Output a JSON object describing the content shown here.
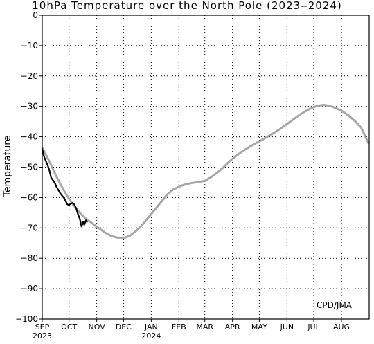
{
  "chart_data": {
    "type": "line",
    "title": "10hPa Temperature over the North Pole (2023‒2024)",
    "ylabel": "Temperature",
    "xlabel": "",
    "ylim": [
      -100,
      0
    ],
    "yticks": [
      0,
      -10,
      -20,
      -30,
      -40,
      -50,
      -60,
      -70,
      -80,
      -90,
      -100
    ],
    "ytick_labels": [
      "0",
      "−10",
      "−20",
      "−30",
      "−40",
      "−50",
      "−60",
      "−70",
      "−80",
      "−90",
      "−100"
    ],
    "x_months": [
      {
        "label": "SEP",
        "year": "2023"
      },
      {
        "label": "OCT",
        "year": ""
      },
      {
        "label": "NOV",
        "year": ""
      },
      {
        "label": "DEC",
        "year": ""
      },
      {
        "label": "JAN",
        "year": "2024"
      },
      {
        "label": "FEB",
        "year": ""
      },
      {
        "label": "MAR",
        "year": ""
      },
      {
        "label": "APR",
        "year": ""
      },
      {
        "label": "MAY",
        "year": ""
      },
      {
        "label": "JUN",
        "year": ""
      },
      {
        "label": "JUL",
        "year": ""
      },
      {
        "label": "AUG",
        "year": ""
      }
    ],
    "grid": true,
    "annotation": "CPD/JMA",
    "series": [
      {
        "color": "#a6a6a6",
        "points": [
          [
            "2023-09-01",
            -43.5
          ],
          [
            "2023-09-08",
            -47.5
          ],
          [
            "2023-09-15",
            -52.0
          ],
          [
            "2023-09-22",
            -56.0
          ],
          [
            "2023-09-29",
            -59.5
          ],
          [
            "2023-10-06",
            -62.5
          ],
          [
            "2023-10-13",
            -65.0
          ],
          [
            "2023-10-20",
            -67.0
          ],
          [
            "2023-10-27",
            -68.5
          ],
          [
            "2023-11-03",
            -70.0
          ],
          [
            "2023-11-10",
            -71.5
          ],
          [
            "2023-11-17",
            -72.6
          ],
          [
            "2023-11-24",
            -73.2
          ],
          [
            "2023-12-01",
            -73.3
          ],
          [
            "2023-12-08",
            -72.6
          ],
          [
            "2023-12-15",
            -71.0
          ],
          [
            "2023-12-22",
            -69.0
          ],
          [
            "2023-12-29",
            -66.5
          ],
          [
            "2024-01-05",
            -64.0
          ],
          [
            "2024-01-12",
            -61.5
          ],
          [
            "2024-01-19",
            -59.0
          ],
          [
            "2024-01-26",
            -57.3
          ],
          [
            "2024-02-02",
            -56.3
          ],
          [
            "2024-02-09",
            -55.6
          ],
          [
            "2024-02-16",
            -55.2
          ],
          [
            "2024-02-23",
            -54.9
          ],
          [
            "2024-03-01",
            -54.5
          ],
          [
            "2024-03-08",
            -53.3
          ],
          [
            "2024-03-15",
            -51.8
          ],
          [
            "2024-03-22",
            -50.0
          ],
          [
            "2024-03-29",
            -48.0
          ],
          [
            "2024-04-05",
            -46.3
          ],
          [
            "2024-04-12",
            -44.8
          ],
          [
            "2024-04-19",
            -43.5
          ],
          [
            "2024-04-26",
            -42.3
          ],
          [
            "2024-05-03",
            -41.2
          ],
          [
            "2024-05-10",
            -40.0
          ],
          [
            "2024-05-17",
            -38.8
          ],
          [
            "2024-05-24",
            -37.5
          ],
          [
            "2024-05-31",
            -36.0
          ],
          [
            "2024-06-07",
            -34.5
          ],
          [
            "2024-06-14",
            -33.0
          ],
          [
            "2024-06-21",
            -31.7
          ],
          [
            "2024-06-28",
            -30.6
          ],
          [
            "2024-07-05",
            -29.8
          ],
          [
            "2024-07-12",
            -29.5
          ],
          [
            "2024-07-19",
            -29.8
          ],
          [
            "2024-07-26",
            -30.6
          ],
          [
            "2024-08-02",
            -31.6
          ],
          [
            "2024-08-09",
            -33.0
          ],
          [
            "2024-08-16",
            -34.8
          ],
          [
            "2024-08-23",
            -37.0
          ],
          [
            "2024-08-31",
            -42.0
          ]
        ]
      },
      {
        "color": "#000000",
        "points": [
          [
            "2023-09-01",
            -44.0
          ],
          [
            "2023-09-03",
            -46.5
          ],
          [
            "2023-09-05",
            -48.0
          ],
          [
            "2023-09-07",
            -49.3
          ],
          [
            "2023-09-09",
            -51.0
          ],
          [
            "2023-09-11",
            -53.5
          ],
          [
            "2023-09-13",
            -54.3
          ],
          [
            "2023-09-15",
            -55.2
          ],
          [
            "2023-09-17",
            -56.5
          ],
          [
            "2023-09-19",
            -57.5
          ],
          [
            "2023-09-21",
            -58.5
          ],
          [
            "2023-09-23",
            -59.3
          ],
          [
            "2023-09-25",
            -60.0
          ],
          [
            "2023-09-27",
            -61.0
          ],
          [
            "2023-09-29",
            -62.2
          ],
          [
            "2023-10-01",
            -62.5
          ],
          [
            "2023-10-03",
            -62.0
          ],
          [
            "2023-10-05",
            -61.8
          ],
          [
            "2023-10-07",
            -62.3
          ],
          [
            "2023-10-09",
            -63.5
          ],
          [
            "2023-10-11",
            -65.5
          ],
          [
            "2023-10-13",
            -67.0
          ],
          [
            "2023-10-15",
            -69.5
          ],
          [
            "2023-10-17",
            -68.0
          ],
          [
            "2023-10-18",
            -69.0
          ],
          [
            "2023-10-20",
            -67.5
          ],
          [
            "2023-10-21",
            -68.0
          ]
        ]
      }
    ]
  }
}
